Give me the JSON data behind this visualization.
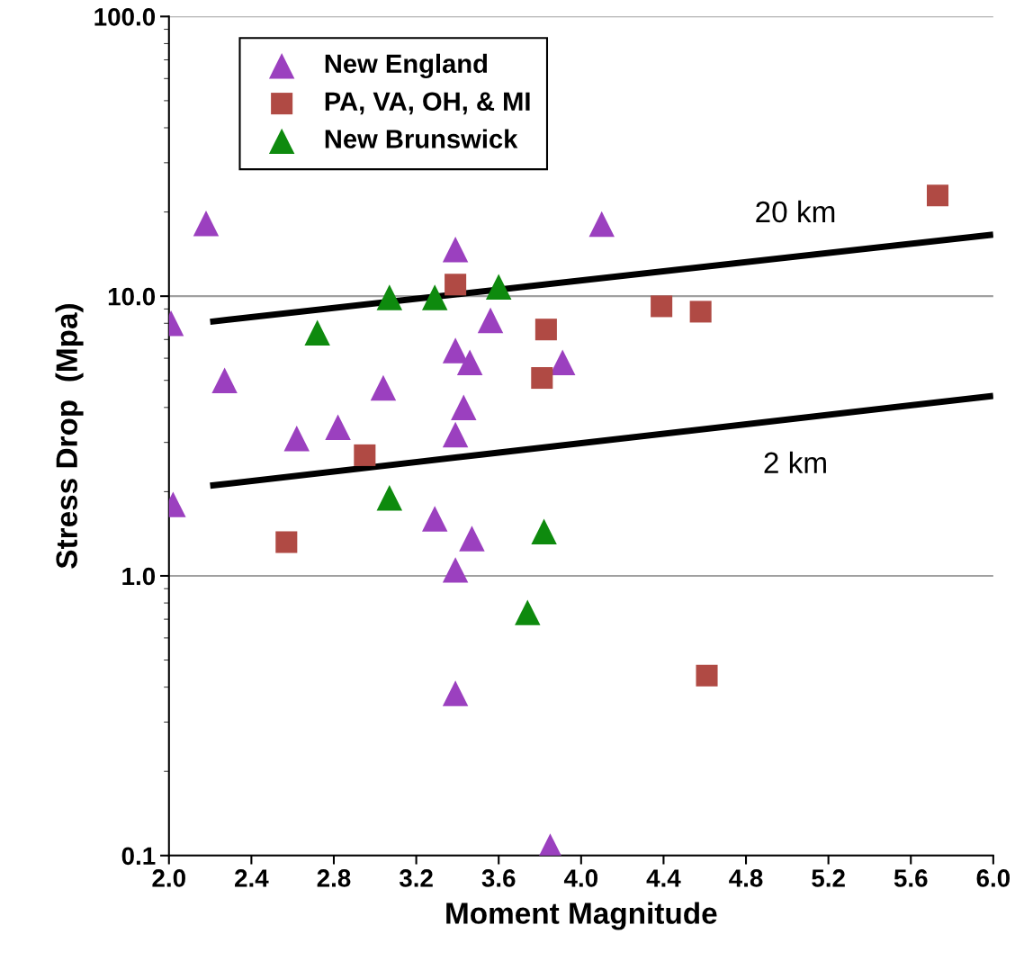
{
  "chart_data": {
    "type": "scatter",
    "xlabel": "Moment Magnitude",
    "ylabel": "Stress Drop  (Mpa)",
    "log": "y",
    "grid": "y",
    "legend": "top left",
    "xlim": [
      2.0,
      6.0
    ],
    "xticks": [
      {
        "value": 2.0,
        "label": "2.0"
      },
      {
        "value": 2.4,
        "label": "2.4"
      },
      {
        "value": 2.8,
        "label": "2.8"
      },
      {
        "value": 3.2,
        "label": "3.2"
      },
      {
        "value": 3.6,
        "label": "3.6"
      },
      {
        "value": 4.0,
        "label": "4.0"
      },
      {
        "value": 4.4,
        "label": "4.4"
      },
      {
        "value": 4.8,
        "label": "4.8"
      },
      {
        "value": 5.2,
        "label": "5.2"
      },
      {
        "value": 5.6,
        "label": "5.6"
      },
      {
        "value": 6.0,
        "label": "6.0"
      }
    ],
    "ylim": [
      0.1,
      100
    ],
    "yticks": [
      {
        "value": 0.1,
        "label": "0.1"
      },
      {
        "value": 1,
        "label": "1.0"
      },
      {
        "value": 10,
        "label": "10.0"
      },
      {
        "value": 100,
        "label": "100.0"
      }
    ],
    "series": [
      {
        "name": "New England",
        "color": "#9b40bf",
        "marker": "triangle",
        "x": [
          2.18,
          2.01,
          2.27,
          2.02,
          2.62,
          2.82,
          3.04,
          3.29,
          3.39,
          3.39,
          3.39,
          3.43,
          3.46,
          3.56,
          3.47,
          3.39,
          3.39,
          3.91,
          4.1,
          3.85
        ],
        "values": [
          18.2,
          8.0,
          5.0,
          1.8,
          3.1,
          3.4,
          4.7,
          1.6,
          14.7,
          6.4,
          3.2,
          4.0,
          5.8,
          8.2,
          1.36,
          1.05,
          0.38,
          5.8,
          18.1,
          0.108
        ]
      },
      {
        "name": "PA, VA, OH, & MI",
        "color": "#b04a44",
        "marker": "square",
        "x": [
          2.57,
          2.95,
          3.39,
          3.83,
          3.81,
          4.39,
          4.58,
          4.61,
          5.73
        ],
        "values": [
          1.32,
          2.7,
          11.0,
          7.6,
          5.1,
          9.2,
          8.8,
          0.44,
          22.9
        ]
      },
      {
        "name": "New Brunswick",
        "color": "#0e8a0e",
        "marker": "triangle",
        "x": [
          2.72,
          3.07,
          3.29,
          3.6,
          3.07,
          3.82,
          3.74
        ],
        "values": [
          7.4,
          9.9,
          9.9,
          10.8,
          1.9,
          1.44,
          0.74
        ]
      },
      {
        "type": "line",
        "color": "#000000",
        "marker": "none",
        "x": [
          2.2,
          6.0
        ],
        "values": [
          8.1,
          16.6
        ]
      },
      {
        "type": "line",
        "color": "#000000",
        "marker": "none",
        "x": [
          2.2,
          6.0
        ],
        "values": [
          2.1,
          4.4
        ]
      }
    ],
    "annotations": [
      "20 km",
      "2 km"
    ]
  }
}
